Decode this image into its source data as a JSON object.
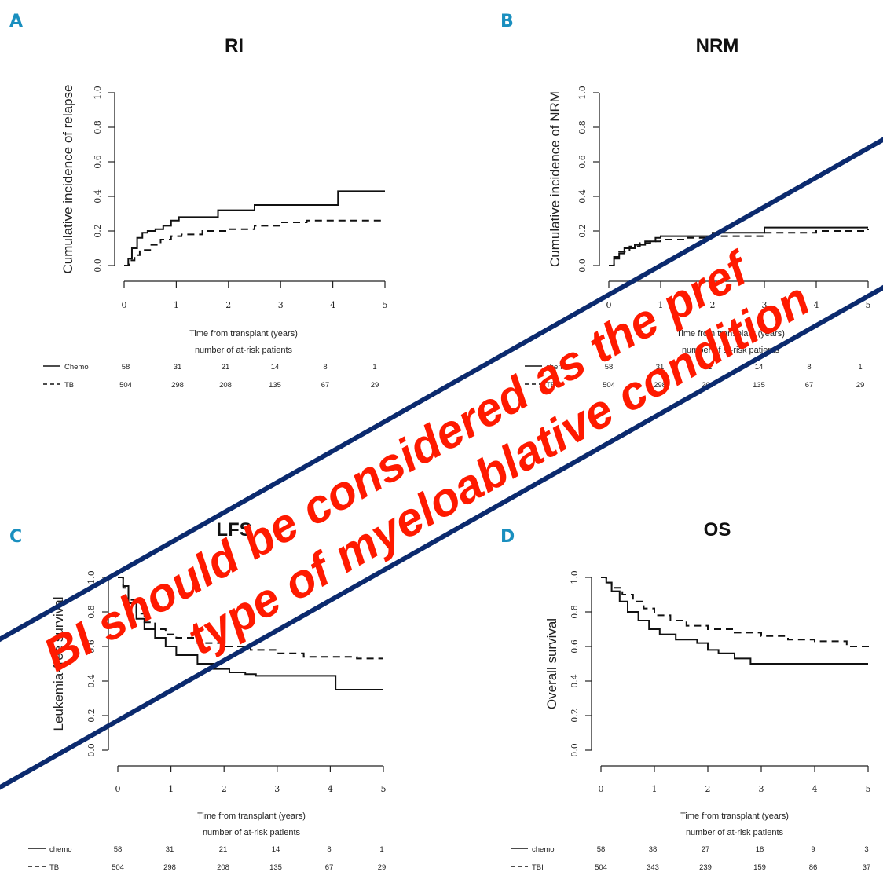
{
  "overlay": {
    "line1": "BI should be considered as the pref",
    "line2": "type of myeloablative condition",
    "band_color": "#0b2a6e",
    "text_color": "#ff1a00"
  },
  "at_risk_header": "number of at-risk patients",
  "chart_data": [
    {
      "panel": "A",
      "type": "line",
      "title": "RI",
      "xlabel": "Time from transplant (years)",
      "ylabel": "Cumulative incidence of relapse",
      "xlim": [
        0,
        5
      ],
      "ylim": [
        0,
        1
      ],
      "xticks": [
        "0",
        "1",
        "2",
        "3",
        "4",
        "5"
      ],
      "yticks": [
        "0.0",
        "0.2",
        "0.4",
        "0.6",
        "0.8",
        "1.0"
      ],
      "series": [
        {
          "name": "Chemo",
          "dash": false,
          "x": [
            0,
            0.08,
            0.15,
            0.25,
            0.35,
            0.45,
            0.6,
            0.75,
            0.9,
            1.05,
            1.4,
            1.8,
            2.2,
            2.5,
            3.0,
            3.6,
            4.0,
            4.1,
            5.0
          ],
          "y": [
            0,
            0.04,
            0.1,
            0.16,
            0.19,
            0.2,
            0.21,
            0.23,
            0.26,
            0.28,
            0.28,
            0.32,
            0.32,
            0.35,
            0.35,
            0.35,
            0.35,
            0.43,
            0.43
          ]
        },
        {
          "name": "TBI",
          "dash": true,
          "x": [
            0,
            0.1,
            0.2,
            0.3,
            0.5,
            0.7,
            0.9,
            1.1,
            1.5,
            2.0,
            2.5,
            3.0,
            3.5,
            4.0,
            5.0
          ],
          "y": [
            0,
            0.03,
            0.06,
            0.09,
            0.12,
            0.15,
            0.17,
            0.18,
            0.2,
            0.21,
            0.23,
            0.25,
            0.26,
            0.26,
            0.26
          ]
        }
      ],
      "at_risk": [
        {
          "label": "Chemo",
          "dash": false,
          "counts": [
            "58",
            "31",
            "21",
            "14",
            "8",
            "1"
          ]
        },
        {
          "label": "TBI",
          "dash": true,
          "counts": [
            "504",
            "298",
            "208",
            "135",
            "67",
            "29"
          ]
        }
      ]
    },
    {
      "panel": "B",
      "type": "line",
      "title": "NRM",
      "xlabel": "Time from transplant (years)",
      "ylabel": "Cumulative incidence of NRM",
      "xlim": [
        0,
        5
      ],
      "ylim": [
        0,
        1
      ],
      "xticks": [
        "0",
        "1",
        "2",
        "3",
        "4",
        "5"
      ],
      "yticks": [
        "0.0",
        "0.2",
        "0.4",
        "0.6",
        "0.8",
        "1.0"
      ],
      "series": [
        {
          "name": "chemo",
          "dash": false,
          "x": [
            0,
            0.1,
            0.2,
            0.3,
            0.5,
            0.7,
            0.9,
            1.0,
            2.0,
            3.0,
            5.0
          ],
          "y": [
            0,
            0.04,
            0.07,
            0.1,
            0.12,
            0.14,
            0.16,
            0.17,
            0.19,
            0.22,
            0.22
          ]
        },
        {
          "name": "TBI",
          "dash": true,
          "x": [
            0,
            0.1,
            0.2,
            0.4,
            0.6,
            0.8,
            1.0,
            1.5,
            2.0,
            3.0,
            4.0,
            5.0
          ],
          "y": [
            0,
            0.05,
            0.08,
            0.11,
            0.13,
            0.14,
            0.15,
            0.16,
            0.17,
            0.19,
            0.2,
            0.21
          ]
        }
      ],
      "at_risk": [
        {
          "label": "chemo",
          "dash": false,
          "counts": [
            "58",
            "31",
            "21",
            "14",
            "8",
            "1"
          ]
        },
        {
          "label": "TBI",
          "dash": true,
          "counts": [
            "504",
            "298",
            "208",
            "135",
            "67",
            "29"
          ]
        }
      ]
    },
    {
      "panel": "C",
      "type": "line",
      "title": "LFS",
      "xlabel": "Time from transplant (years)",
      "ylabel": "Leukemia-free survival",
      "xlim": [
        0,
        5
      ],
      "ylim": [
        0,
        1
      ],
      "xticks": [
        "0",
        "1",
        "2",
        "3",
        "4",
        "5"
      ],
      "yticks": [
        "0.0",
        "0.2",
        "0.4",
        "0.6",
        "0.8",
        "1.0"
      ],
      "series": [
        {
          "name": "chemo",
          "dash": false,
          "x": [
            0,
            0.1,
            0.2,
            0.35,
            0.5,
            0.7,
            0.9,
            1.1,
            1.5,
            1.8,
            2.1,
            2.4,
            2.6,
            3.0,
            3.5,
            4.0,
            4.1,
            5.0
          ],
          "y": [
            1,
            0.95,
            0.85,
            0.76,
            0.7,
            0.65,
            0.6,
            0.55,
            0.5,
            0.47,
            0.45,
            0.44,
            0.43,
            0.43,
            0.43,
            0.43,
            0.35,
            0.35
          ]
        },
        {
          "name": "TBI",
          "dash": true,
          "x": [
            0,
            0.1,
            0.2,
            0.35,
            0.5,
            0.7,
            0.9,
            1.1,
            1.5,
            2.0,
            2.5,
            3.0,
            3.5,
            4.0,
            4.5,
            5.0
          ],
          "y": [
            1,
            0.94,
            0.87,
            0.79,
            0.74,
            0.7,
            0.67,
            0.65,
            0.62,
            0.6,
            0.58,
            0.56,
            0.54,
            0.54,
            0.53,
            0.53
          ]
        }
      ],
      "at_risk": [
        {
          "label": "chemo",
          "dash": false,
          "counts": [
            "58",
            "31",
            "21",
            "14",
            "8",
            "1"
          ]
        },
        {
          "label": "TBI",
          "dash": true,
          "counts": [
            "504",
            "298",
            "208",
            "135",
            "67",
            "29"
          ]
        }
      ]
    },
    {
      "panel": "D",
      "type": "line",
      "title": "OS",
      "xlabel": "Time from transplant (years)",
      "ylabel": "Overall survival",
      "xlim": [
        0,
        5
      ],
      "ylim": [
        0,
        1
      ],
      "xticks": [
        "0",
        "1",
        "2",
        "3",
        "4",
        "5"
      ],
      "yticks": [
        "0.0",
        "0.2",
        "0.4",
        "0.6",
        "0.8",
        "1.0"
      ],
      "series": [
        {
          "name": "chemo",
          "dash": false,
          "x": [
            0,
            0.1,
            0.2,
            0.35,
            0.5,
            0.7,
            0.9,
            1.1,
            1.4,
            1.8,
            2.0,
            2.2,
            2.5,
            2.8,
            3.0,
            5.0
          ],
          "y": [
            1,
            0.97,
            0.92,
            0.86,
            0.8,
            0.75,
            0.7,
            0.67,
            0.64,
            0.62,
            0.58,
            0.56,
            0.53,
            0.5,
            0.5,
            0.5
          ]
        },
        {
          "name": "TBI",
          "dash": true,
          "x": [
            0,
            0.1,
            0.2,
            0.4,
            0.6,
            0.8,
            1.0,
            1.3,
            1.6,
            2.0,
            2.5,
            3.0,
            3.5,
            4.0,
            4.4,
            4.6,
            5.0
          ],
          "y": [
            1,
            0.97,
            0.94,
            0.9,
            0.86,
            0.82,
            0.78,
            0.75,
            0.72,
            0.7,
            0.68,
            0.66,
            0.64,
            0.63,
            0.63,
            0.6,
            0.59
          ]
        }
      ],
      "at_risk": [
        {
          "label": "chemo",
          "dash": false,
          "counts": [
            "58",
            "38",
            "27",
            "18",
            "9",
            "3"
          ]
        },
        {
          "label": "TBI",
          "dash": true,
          "counts": [
            "504",
            "343",
            "239",
            "159",
            "86",
            "37"
          ]
        }
      ]
    }
  ]
}
